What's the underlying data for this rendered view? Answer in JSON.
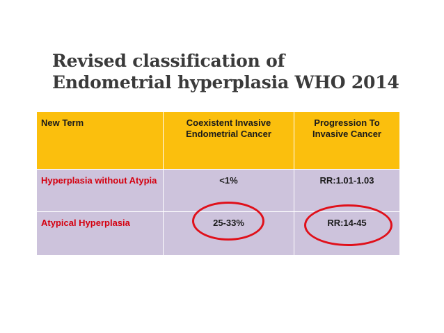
{
  "slide": {
    "title_line1": "Revised classification of",
    "title_line2": "Endometrial hyperplasia WHO 2014"
  },
  "table": {
    "headers": {
      "term": "New Term",
      "coexistent": "Coexistent Invasive Endometrial Cancer",
      "progression": "Progression To Invasive Cancer"
    },
    "rows": [
      {
        "term": "Hyperplasia without Atypia",
        "coexistent": "<1%",
        "progression": "RR:1.01-1.03"
      },
      {
        "term": "Atypical Hyperplasia",
        "coexistent": "25-33%",
        "progression": "RR:14-45"
      }
    ]
  },
  "colors": {
    "header_bg": "#fbbf0d",
    "row_bg": "#cdc3dc",
    "term_text": "#d4000f",
    "highlight_circle": "#e0101a"
  }
}
